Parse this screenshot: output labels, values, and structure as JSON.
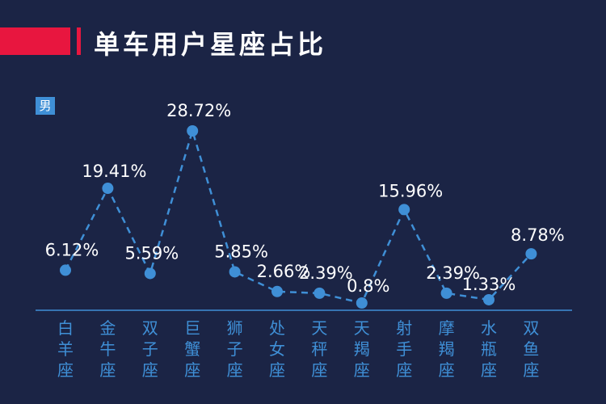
{
  "header": {
    "title": "单车用户星座占比"
  },
  "legend": {
    "label": "男"
  },
  "colors": {
    "background": "#1b2445",
    "accent": "#e8163f",
    "series": "#3f8fd6",
    "axis_label": "#3f8fd6",
    "text": "#ffffff"
  },
  "chart_data": {
    "type": "line",
    "title": "单车用户星座占比",
    "categories": [
      "白羊座",
      "金牛座",
      "双子座",
      "巨蟹座",
      "狮子座",
      "处女座",
      "天秤座",
      "天羯座",
      "射手座",
      "摩羯座",
      "水瓶座",
      "双鱼座"
    ],
    "series": [
      {
        "name": "男",
        "values": [
          6.12,
          19.41,
          5.59,
          28.72,
          5.85,
          2.66,
          2.39,
          0.8,
          15.96,
          2.39,
          1.33,
          8.78
        ],
        "labels": [
          "6.12%",
          "19.41%",
          "5.59%",
          "28.72%",
          "5.85%",
          "2.66%",
          "2.39%",
          "0.8%",
          "15.96%",
          "2.39%",
          "1.33%",
          "8.78%"
        ]
      }
    ],
    "line_style": "dashed",
    "grid": false
  }
}
